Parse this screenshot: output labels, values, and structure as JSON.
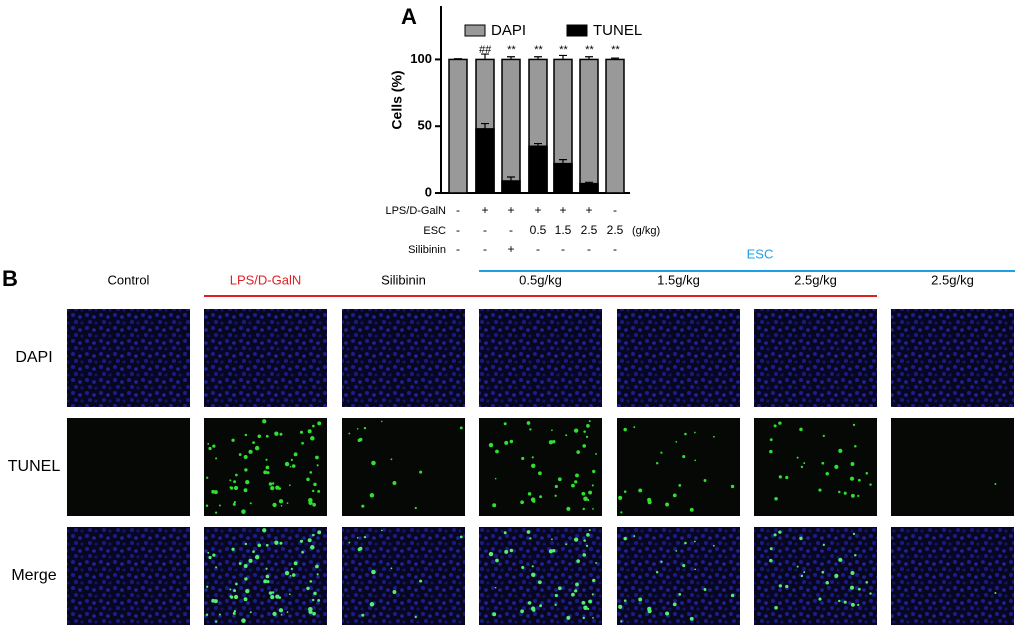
{
  "panel_a": "A",
  "panel_b": "B",
  "chart_data": {
    "type": "bar",
    "ylabel": "Cells (%)",
    "categories": [
      null,
      null,
      null,
      null,
      null,
      null,
      null
    ],
    "ylim": [
      0,
      140
    ],
    "yticks": [
      0,
      50,
      100
    ],
    "series": [
      {
        "name": "DAPI",
        "color": "#999999",
        "values": [
          100,
          100,
          100,
          100,
          100,
          100,
          100
        ],
        "errors": [
          0.5,
          4,
          2,
          2,
          3,
          2,
          1
        ]
      },
      {
        "name": "TUNEL",
        "color": "#000000",
        "values": [
          0,
          48,
          9,
          35,
          22,
          7,
          0
        ],
        "errors": [
          0,
          4,
          3,
          2,
          3,
          1,
          0
        ]
      }
    ],
    "annotations": [
      null,
      "##",
      "**",
      "**",
      "**",
      "**",
      "**"
    ],
    "treatments": [
      {
        "name": "LPS/D-GalN",
        "values": [
          "-",
          "+",
          "+",
          "+",
          "+",
          "+",
          "-"
        ]
      },
      {
        "name": "ESC",
        "values": [
          "-",
          "-",
          "-",
          "0.5",
          "1.5",
          "2.5",
          "2.5"
        ],
        "unit": "(g/kg)"
      },
      {
        "name": "Silibinin",
        "values": [
          "-",
          "-",
          "+",
          "-",
          "-",
          "-",
          "-"
        ]
      }
    ]
  },
  "grid": {
    "group_label": "ESC",
    "columns": [
      "Control",
      "LPS/D-GalN",
      "Silibinin",
      "0.5g/kg",
      "1.5g/kg",
      "2.5g/kg",
      "2.5g/kg"
    ],
    "rows": [
      "DAPI",
      "TUNEL",
      "Merge"
    ]
  }
}
